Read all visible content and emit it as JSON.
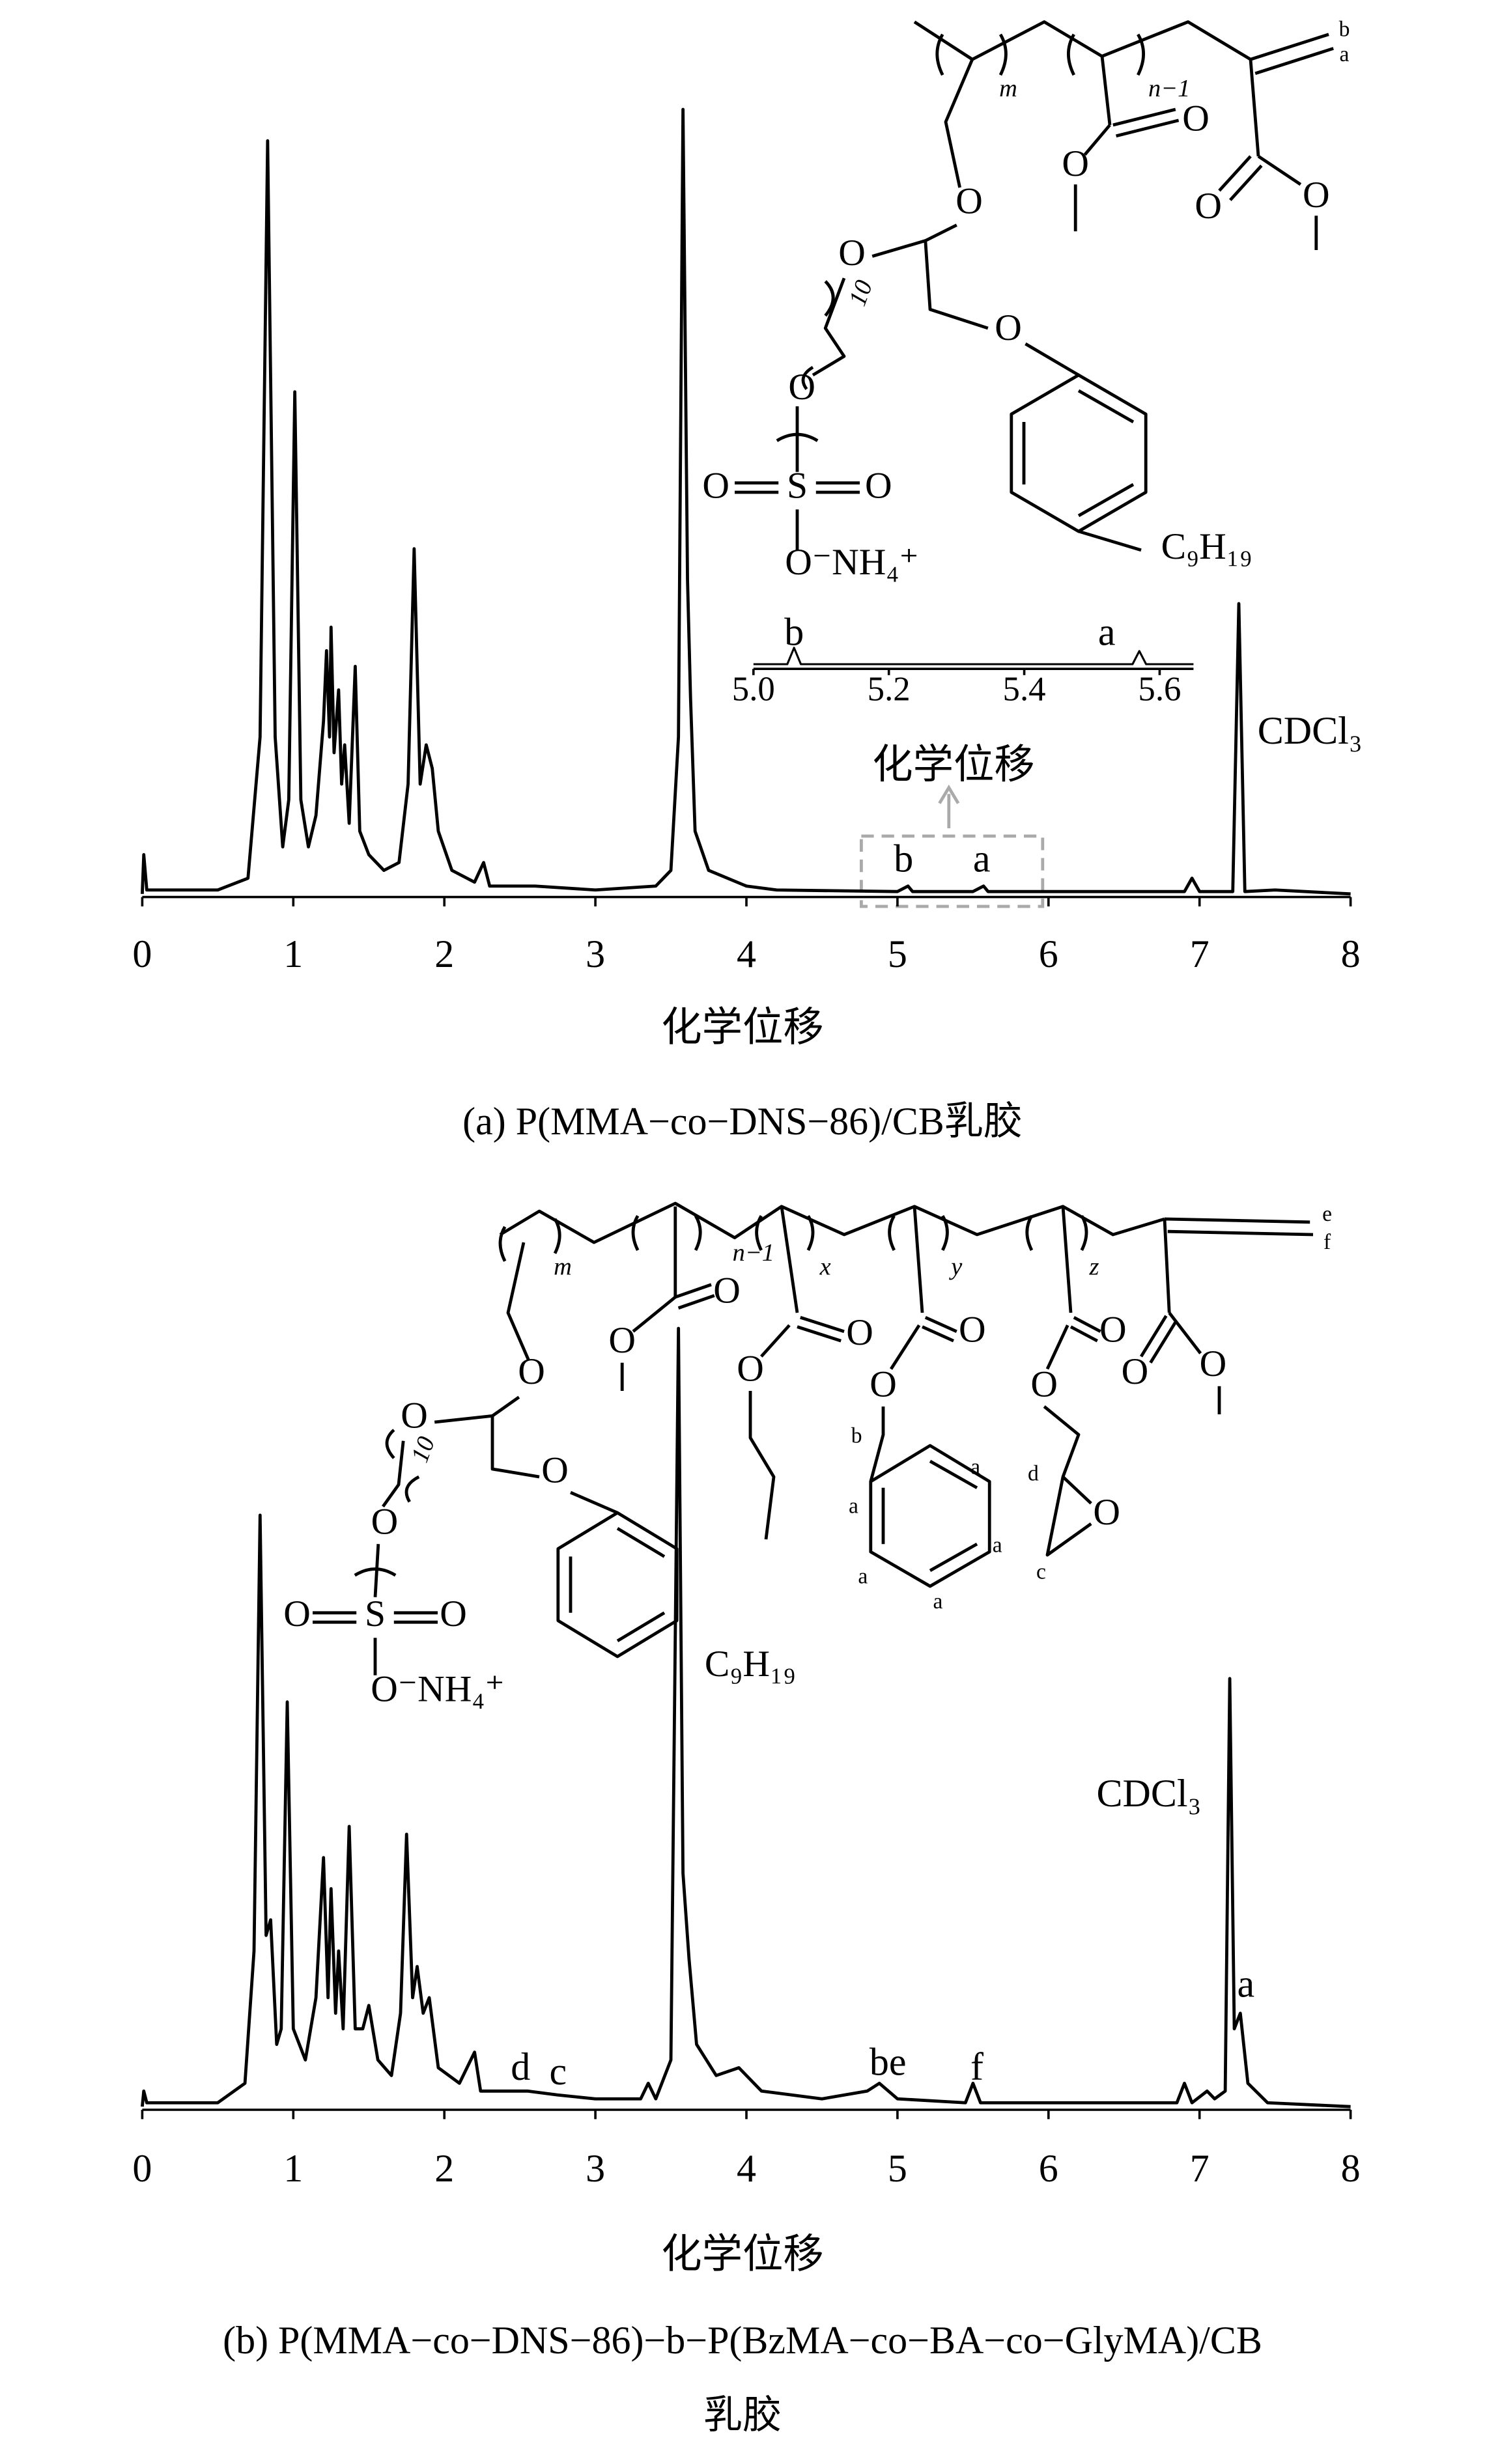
{
  "chart_data": [
    {
      "type": "line",
      "xlabel": "化学位移",
      "caption": [
        "(a)  P(MMA−co−DNS−86)/CB乳胶"
      ],
      "color": "#000000",
      "xlim": [
        0,
        8
      ],
      "xticks": [
        0,
        1,
        2,
        3,
        4,
        5,
        6,
        7,
        8
      ],
      "ylim": [
        0,
        100
      ],
      "x": [
        0.0,
        0.01,
        0.03,
        0.5,
        0.7,
        0.78,
        0.83,
        0.88,
        0.93,
        0.97,
        1.01,
        1.05,
        1.1,
        1.15,
        1.2,
        1.22,
        1.24,
        1.25,
        1.27,
        1.3,
        1.32,
        1.34,
        1.37,
        1.41,
        1.44,
        1.5,
        1.6,
        1.7,
        1.76,
        1.8,
        1.84,
        1.88,
        1.92,
        1.96,
        2.05,
        2.2,
        2.26,
        2.3,
        2.6,
        3.0,
        3.4,
        3.5,
        3.55,
        3.58,
        3.61,
        3.63,
        3.66,
        3.75,
        4.0,
        4.2,
        5.0,
        5.07,
        5.1,
        5.5,
        5.57,
        5.6,
        6.9,
        6.95,
        7.0,
        7.22,
        7.26,
        7.3,
        7.5,
        8.0
      ],
      "values": [
        0,
        5,
        0.5,
        0.5,
        2,
        20,
        96,
        20,
        6,
        12,
        64,
        12,
        6,
        10,
        22,
        31,
        20,
        34,
        18,
        26,
        14,
        19,
        9,
        29,
        8,
        5,
        3,
        4,
        14,
        44,
        14,
        19,
        16,
        8,
        3,
        1.5,
        4,
        1,
        1,
        0.5,
        1,
        3,
        20,
        100,
        40,
        25,
        8,
        3,
        1,
        0.5,
        0.3,
        1,
        0.3,
        0.3,
        1,
        0.3,
        0.3,
        2,
        0.3,
        0.3,
        37,
        0.3,
        0.5,
        0
      ],
      "annotations": [
        "b",
        "a",
        "CDCl₃"
      ]
    },
    {
      "type": "line",
      "xlabel": "化学位移",
      "color": "#000000",
      "xlim": [
        5.0,
        5.65
      ],
      "xticks": [
        {
          "value": 5,
          "label": "5.0"
        },
        5.2,
        5.4,
        5.6
      ],
      "ylim": [
        0,
        10
      ],
      "x": [
        5.0,
        5.05,
        5.06,
        5.07,
        5.2,
        5.5,
        5.56,
        5.57,
        5.58,
        5.65
      ],
      "values": [
        0,
        0,
        2.5,
        0,
        0,
        0,
        0,
        2,
        0,
        0
      ],
      "annotations": [
        "b",
        "a"
      ]
    },
    {
      "type": "line",
      "xlabel": "化学位移",
      "caption": [
        "(b)  P(MMA−co−DNS−86)−b−P(BzMA−co−BA−co−GlyMA)/CB",
        "乳胶"
      ],
      "color": "#000000",
      "xlim": [
        0,
        8
      ],
      "xticks": [
        0,
        1,
        2,
        3,
        4,
        5,
        6,
        7,
        8
      ],
      "ylim": [
        0,
        100
      ],
      "x": [
        0.0,
        0.01,
        0.03,
        0.5,
        0.68,
        0.74,
        0.78,
        0.82,
        0.85,
        0.89,
        0.92,
        0.96,
        1.0,
        1.08,
        1.15,
        1.2,
        1.23,
        1.25,
        1.28,
        1.3,
        1.33,
        1.37,
        1.41,
        1.46,
        1.5,
        1.56,
        1.65,
        1.71,
        1.75,
        1.79,
        1.82,
        1.86,
        1.9,
        1.96,
        2.1,
        2.2,
        2.24,
        2.55,
        2.75,
        3.0,
        3.3,
        3.35,
        3.4,
        3.5,
        3.55,
        3.58,
        3.62,
        3.67,
        3.8,
        3.95,
        4.1,
        4.5,
        4.8,
        4.88,
        5.0,
        5.45,
        5.5,
        5.55,
        6.85,
        6.9,
        6.95,
        7.05,
        7.1,
        7.17,
        7.2,
        7.23,
        7.27,
        7.32,
        7.45,
        8.0
      ],
      "values": [
        0,
        2,
        0.5,
        0.5,
        3,
        20,
        76,
        22,
        24,
        8,
        10,
        52,
        10,
        6,
        14,
        32,
        14,
        28,
        12,
        20,
        10,
        36,
        10,
        10,
        13,
        6,
        4,
        12,
        35,
        14,
        18,
        12,
        14,
        5,
        3,
        7,
        2,
        2,
        1.5,
        1,
        1,
        3,
        1,
        6,
        100,
        30,
        19,
        8,
        4,
        5,
        2,
        1,
        2,
        3,
        1,
        0.5,
        3,
        0.5,
        0.5,
        3,
        0.5,
        2,
        1,
        2,
        55,
        10,
        12,
        3,
        0.5,
        0
      ],
      "annotations": [
        "d",
        "c",
        "be",
        "f",
        "CDCl₃",
        "a"
      ]
    }
  ],
  "structures": [
    {
      "labels": [
        "m",
        "n−1",
        "b",
        "a",
        "O",
        "O",
        "O",
        "O",
        "O",
        "O",
        "10",
        "O",
        "O",
        "S",
        "O",
        "O",
        "O⁻NH₄⁺",
        "C₉H₁₉"
      ]
    },
    {
      "labels": [
        "m",
        "n−1",
        "x",
        "y",
        "z",
        "e",
        "f",
        "O",
        "O",
        "O",
        "O",
        "10",
        "O",
        "O",
        "S",
        "O",
        "O",
        "O⁻NH₄⁺",
        "C₉H₁₉",
        "O",
        "O",
        "O",
        "O",
        "b",
        "a",
        "a",
        "a",
        "a",
        "a",
        "O",
        "O",
        "d",
        "O",
        "c",
        "O",
        "O"
      ]
    }
  ]
}
